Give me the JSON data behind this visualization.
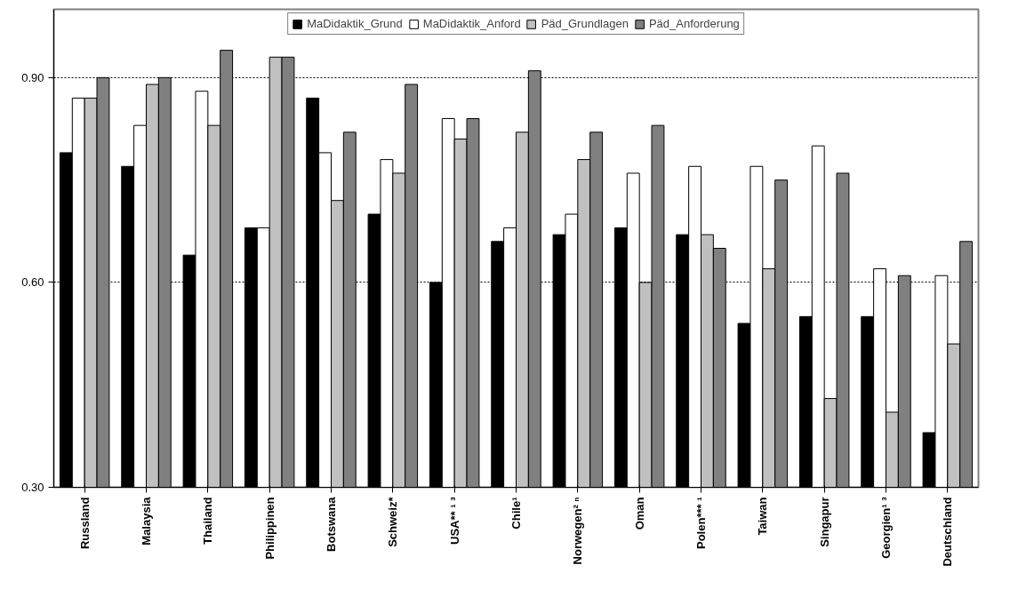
{
  "chart_data": {
    "type": "bar",
    "categories": [
      "Russland",
      "Malaysia",
      "Thailand",
      "Philippinen",
      "Botswana",
      "Schweiz*",
      "USA** ¹ ³",
      "Chile¹",
      "Norwegen² ⁿ",
      "Oman",
      "Polen*** ¹",
      "Taiwan",
      "Singapur",
      "Georgien¹ ³",
      "Deutschland"
    ],
    "series": [
      {
        "name": "MaDidaktik_Grund",
        "color": "#000000",
        "values": [
          0.79,
          0.77,
          0.64,
          0.68,
          0.87,
          0.7,
          0.6,
          0.66,
          0.67,
          0.68,
          0.67,
          0.54,
          0.55,
          0.55,
          0.38
        ]
      },
      {
        "name": "MaDidaktik_Anford",
        "color": "#ffffff",
        "values": [
          0.87,
          0.83,
          0.88,
          0.68,
          0.79,
          0.78,
          0.84,
          0.68,
          0.7,
          0.76,
          0.77,
          0.77,
          0.8,
          0.62,
          0.61
        ]
      },
      {
        "name": "Päd_Grundlagen",
        "color": "#c0c0c0",
        "values": [
          0.87,
          0.89,
          0.83,
          0.93,
          0.72,
          0.76,
          0.81,
          0.82,
          0.78,
          0.6,
          0.67,
          0.62,
          0.43,
          0.41,
          0.51
        ]
      },
      {
        "name": "Päd_Anforderung",
        "color": "#808080",
        "values": [
          0.9,
          0.9,
          0.94,
          0.93,
          0.82,
          0.89,
          0.84,
          0.91,
          0.82,
          0.83,
          0.65,
          0.75,
          0.76,
          0.61,
          0.66
        ]
      }
    ],
    "ylim": [
      0.3,
      1.0
    ],
    "yticks": [
      {
        "value": 0.3,
        "label": "0.30"
      },
      {
        "value": 0.6,
        "label": "0.60"
      },
      {
        "value": 0.9,
        "label": "0.90"
      }
    ],
    "grid": "y",
    "legend": "top"
  }
}
